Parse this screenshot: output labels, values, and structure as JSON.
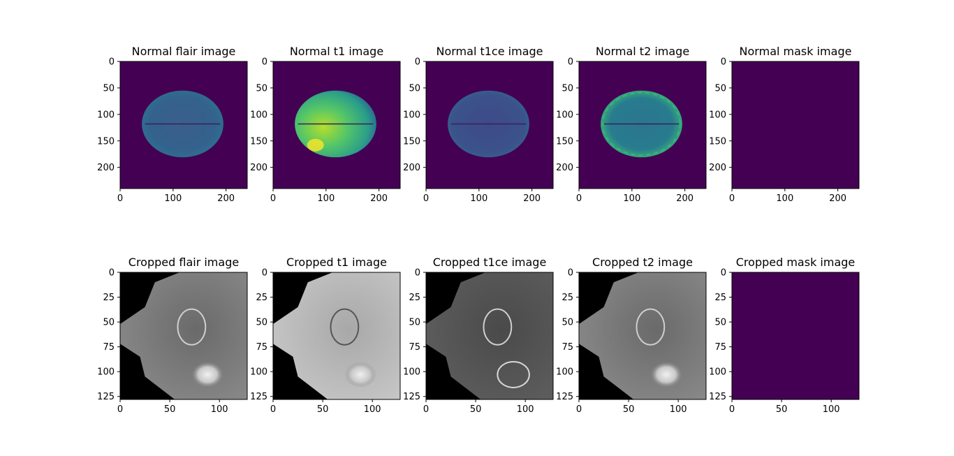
{
  "chart_data": [
    {
      "type": "heatmap",
      "title": "Normal flair image",
      "xticks": [
        0,
        100,
        200
      ],
      "yticks": [
        0,
        50,
        100,
        150,
        200
      ],
      "xlim": [
        0,
        240
      ],
      "ylim": [
        240,
        0
      ],
      "colormap": "viridis",
      "content": "brain"
    },
    {
      "type": "heatmap",
      "title": "Normal t1 image",
      "xticks": [
        0,
        100,
        200
      ],
      "yticks": [
        0,
        50,
        100,
        150,
        200
      ],
      "xlim": [
        0,
        240
      ],
      "ylim": [
        240,
        0
      ],
      "colormap": "viridis",
      "content": "brain"
    },
    {
      "type": "heatmap",
      "title": "Normal t1ce image",
      "xticks": [
        0,
        100,
        200
      ],
      "yticks": [
        0,
        50,
        100,
        150,
        200
      ],
      "xlim": [
        0,
        240
      ],
      "ylim": [
        240,
        0
      ],
      "colormap": "viridis",
      "content": "brain"
    },
    {
      "type": "heatmap",
      "title": "Normal t2 image",
      "xticks": [
        0,
        100,
        200
      ],
      "yticks": [
        0,
        50,
        100,
        150,
        200
      ],
      "xlim": [
        0,
        240
      ],
      "ylim": [
        240,
        0
      ],
      "colormap": "viridis",
      "content": "brain"
    },
    {
      "type": "heatmap",
      "title": "Normal mask image",
      "xticks": [
        0,
        100,
        200
      ],
      "yticks": [
        0,
        50,
        100,
        150,
        200
      ],
      "xlim": [
        0,
        240
      ],
      "ylim": [
        240,
        0
      ],
      "colormap": "viridis",
      "content": "empty"
    },
    {
      "type": "heatmap",
      "title": "Cropped flair image",
      "xticks": [
        0,
        50,
        100
      ],
      "yticks": [
        0,
        25,
        50,
        75,
        100,
        125
      ],
      "xlim": [
        0,
        128
      ],
      "ylim": [
        128,
        0
      ],
      "colormap": "gray",
      "content": "crop"
    },
    {
      "type": "heatmap",
      "title": "Cropped t1 image",
      "xticks": [
        0,
        50,
        100
      ],
      "yticks": [
        0,
        25,
        50,
        75,
        100,
        125
      ],
      "xlim": [
        0,
        128
      ],
      "ylim": [
        128,
        0
      ],
      "colormap": "gray",
      "content": "crop"
    },
    {
      "type": "heatmap",
      "title": "Cropped t1ce image",
      "xticks": [
        0,
        50,
        100
      ],
      "yticks": [
        0,
        25,
        50,
        75,
        100,
        125
      ],
      "xlim": [
        0,
        128
      ],
      "ylim": [
        128,
        0
      ],
      "colormap": "gray",
      "content": "crop"
    },
    {
      "type": "heatmap",
      "title": "Cropped t2 image",
      "xticks": [
        0,
        50,
        100
      ],
      "yticks": [
        0,
        25,
        50,
        75,
        100,
        125
      ],
      "xlim": [
        0,
        128
      ],
      "ylim": [
        128,
        0
      ],
      "colormap": "gray",
      "content": "crop"
    },
    {
      "type": "heatmap",
      "title": "Cropped mask image",
      "xticks": [
        0,
        50,
        100
      ],
      "yticks": [
        0,
        25,
        50,
        75,
        100,
        125
      ],
      "xlim": [
        0,
        128
      ],
      "ylim": [
        128,
        0
      ],
      "colormap": "viridis",
      "content": "empty"
    }
  ],
  "colors": {
    "viridis_background": "#440154",
    "viridis_tissue": "#31688e",
    "viridis_bright": "#35b779",
    "viridis_peak": "#fde725",
    "gray_black": "#000000",
    "gray_tissue": "#7a7a7a",
    "gray_bright": "#e0e0e0"
  }
}
